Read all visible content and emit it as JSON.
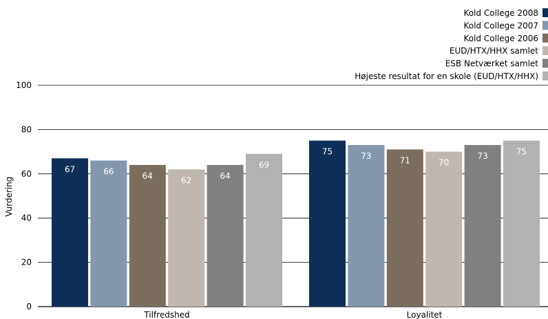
{
  "chart_data": {
    "type": "bar",
    "title": "",
    "xlabel": "",
    "ylabel": "Vurdering",
    "ylim": [
      0,
      100
    ],
    "yticks": [
      0,
      20,
      40,
      60,
      80,
      100
    ],
    "grid": true,
    "legend_position": "top-right",
    "categories": [
      "Tilfredshed",
      "Loyalitet"
    ],
    "series": [
      {
        "name": "Kold College 2008",
        "color": "#0d2f57",
        "label_color": "#ffffff",
        "values": [
          67,
          75
        ]
      },
      {
        "name": "Kold College 2007",
        "color": "#8497ac",
        "label_color": "#ffffff",
        "values": [
          66,
          73
        ]
      },
      {
        "name": "Kold College 2006",
        "color": "#7b6e5f",
        "label_color": "#ffffff",
        "values": [
          64,
          71
        ]
      },
      {
        "name": "EUD/HTX/HHX samlet",
        "color": "#c0b8b0",
        "label_color": "#ffffff",
        "values": [
          62,
          70
        ]
      },
      {
        "name": "ESB Netværket samlet",
        "color": "#808080",
        "label_color": "#ffffff",
        "values": [
          64,
          73
        ]
      },
      {
        "name": "Højeste resultat for en skole (EUD/HTX/HHX)",
        "color": "#b2b2b2",
        "label_color": "#ffffff",
        "values": [
          69,
          75
        ]
      }
    ]
  }
}
